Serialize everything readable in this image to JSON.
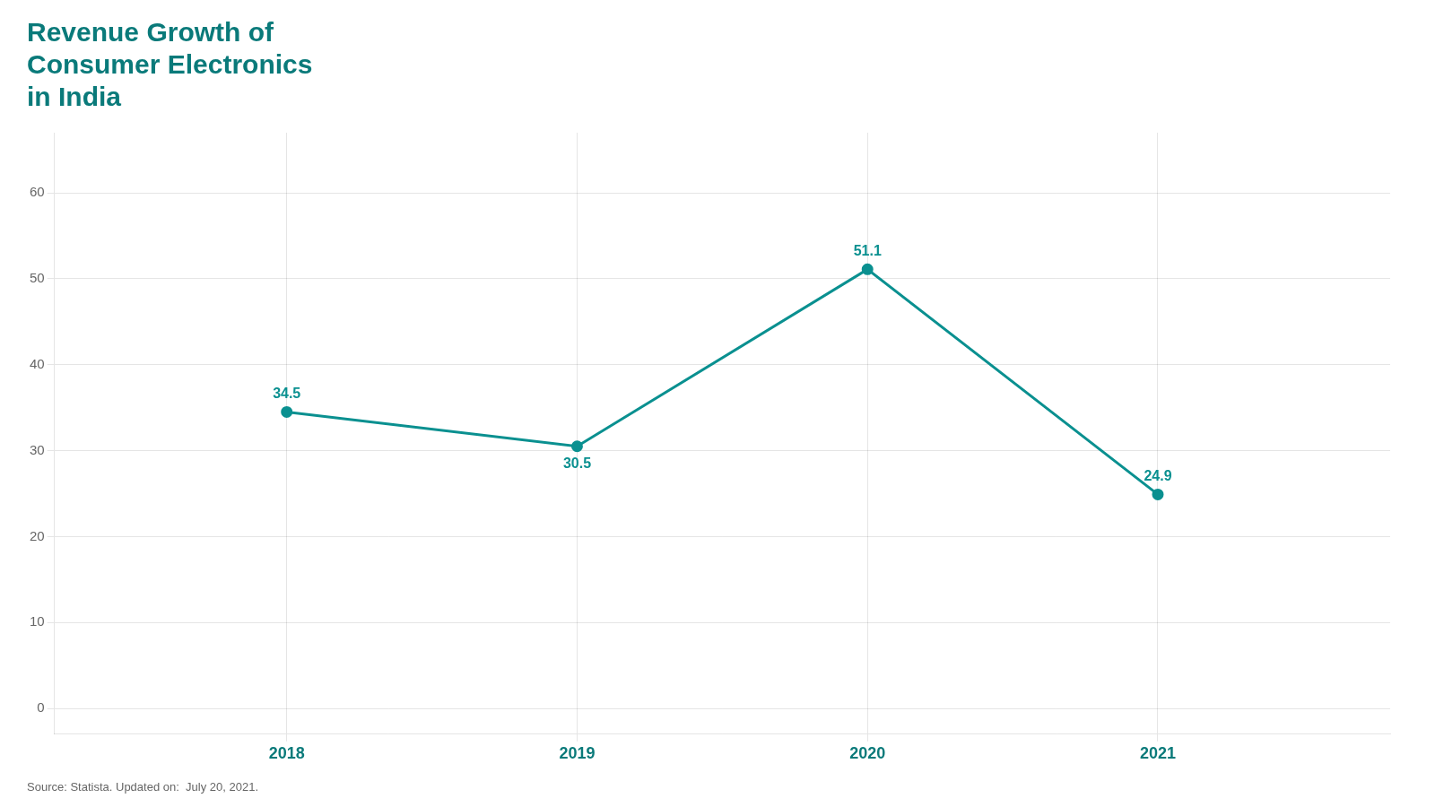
{
  "chart_data": {
    "type": "line",
    "title": [
      "Revenue Growth of",
      "Consumer Electronics",
      "in India"
    ],
    "annotations": [
      "Source: Statista. Updated on:  July 20, 2021."
    ],
    "x": [
      2018,
      2019,
      2020,
      2021
    ],
    "values": [
      34.5,
      30.5,
      51.1,
      24.9
    ],
    "color": "#0a9090",
    "xlim": [
      2017.2,
      2021.8
    ],
    "xticks": [
      2018,
      2019,
      2020,
      2021
    ],
    "ylim": [
      -3,
      67
    ],
    "yticks": [
      0,
      10,
      20,
      30,
      40,
      50,
      60
    ],
    "grid": true,
    "data_labels": true
  }
}
